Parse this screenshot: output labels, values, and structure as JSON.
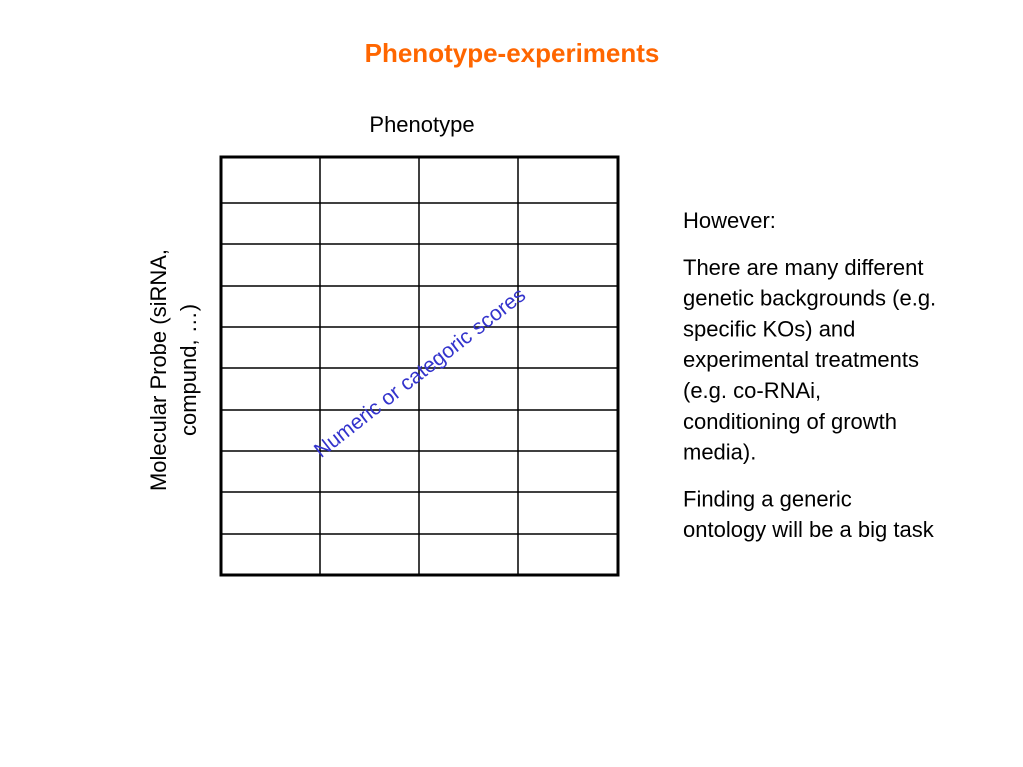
{
  "title": "Phenotype-experiments",
  "column_header": "Phenotype",
  "row_header": {
    "lines": [
      "Molecular Probe (siRNA,",
      "compund, …)"
    ]
  },
  "cell_annotation": "Numeric or categoric scores",
  "notes": {
    "paragraphs": [
      {
        "lines": [
          "However:"
        ]
      },
      {
        "lines": [
          "There are many different",
          "genetic backgrounds (e.g.",
          "specific KOs) and",
          "experimental treatments",
          "(e.g. co-RNAi,",
          "conditioning of growth",
          "media)."
        ]
      },
      {
        "lines": [
          "Finding a generic",
          "ontology will be a big task"
        ]
      }
    ]
  }
}
